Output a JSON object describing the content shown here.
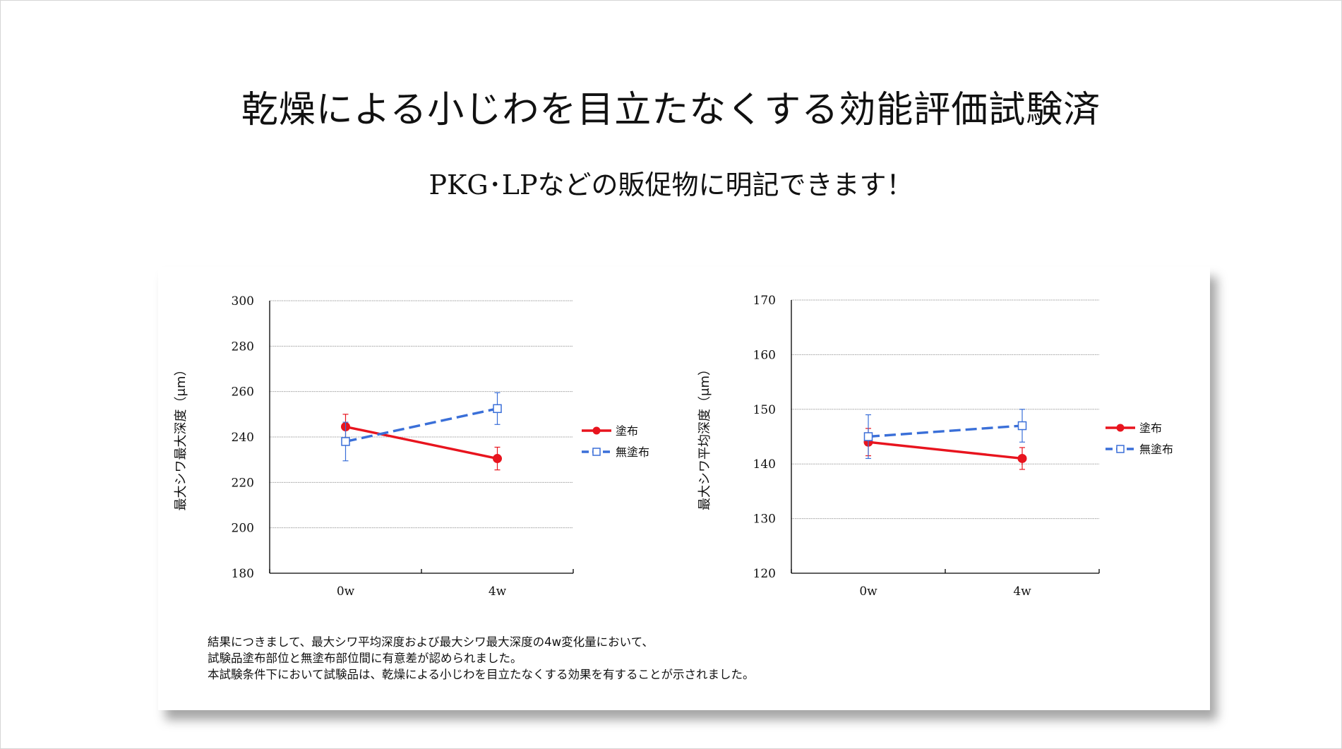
{
  "heading": {
    "title": "乾燥による小じわを目立たなくする効能評価試験済",
    "subtitle": "PKG･LPなどの販促物に明記できます！"
  },
  "colors": {
    "coated": "#e8141e",
    "uncoated": "#3a6fd8",
    "grid": "#a0a0a0"
  },
  "chart_data": [
    {
      "type": "line",
      "ylabel": "最大シワ最大深度（μm）",
      "categories": [
        "0w",
        "4w"
      ],
      "ylim": [
        180,
        300
      ],
      "yticks": [
        180,
        200,
        220,
        240,
        260,
        280,
        300
      ],
      "grid": true,
      "legend": "right",
      "series": [
        {
          "name": "塗布",
          "key": "coated",
          "values": [
            244.5,
            230.5
          ],
          "err": [
            5.5,
            5
          ]
        },
        {
          "name": "無塗布",
          "key": "uncoated",
          "values": [
            238,
            252.5
          ],
          "err": [
            8.5,
            7
          ]
        }
      ]
    },
    {
      "type": "line",
      "ylabel": "最大シワ平均深度（μm）",
      "categories": [
        "0w",
        "4w"
      ],
      "ylim": [
        120,
        170
      ],
      "yticks": [
        120,
        130,
        140,
        150,
        160,
        170
      ],
      "grid": true,
      "legend": "right",
      "series": [
        {
          "name": "塗布",
          "key": "coated",
          "values": [
            144,
            141
          ],
          "err": [
            2.5,
            2
          ]
        },
        {
          "name": "無塗布",
          "key": "uncoated",
          "values": [
            145,
            147
          ],
          "err": [
            4,
            3
          ]
        }
      ]
    }
  ],
  "note": [
    "結果につきまして、最大シワ平均深度および最大シワ最大深度の4w変化量において、",
    "試験品塗布部位と無塗布部位間に有意差が認められました。",
    "本試験条件下において試験品は、乾燥による小じわを目立たなくする効果を有することが示されました。"
  ]
}
